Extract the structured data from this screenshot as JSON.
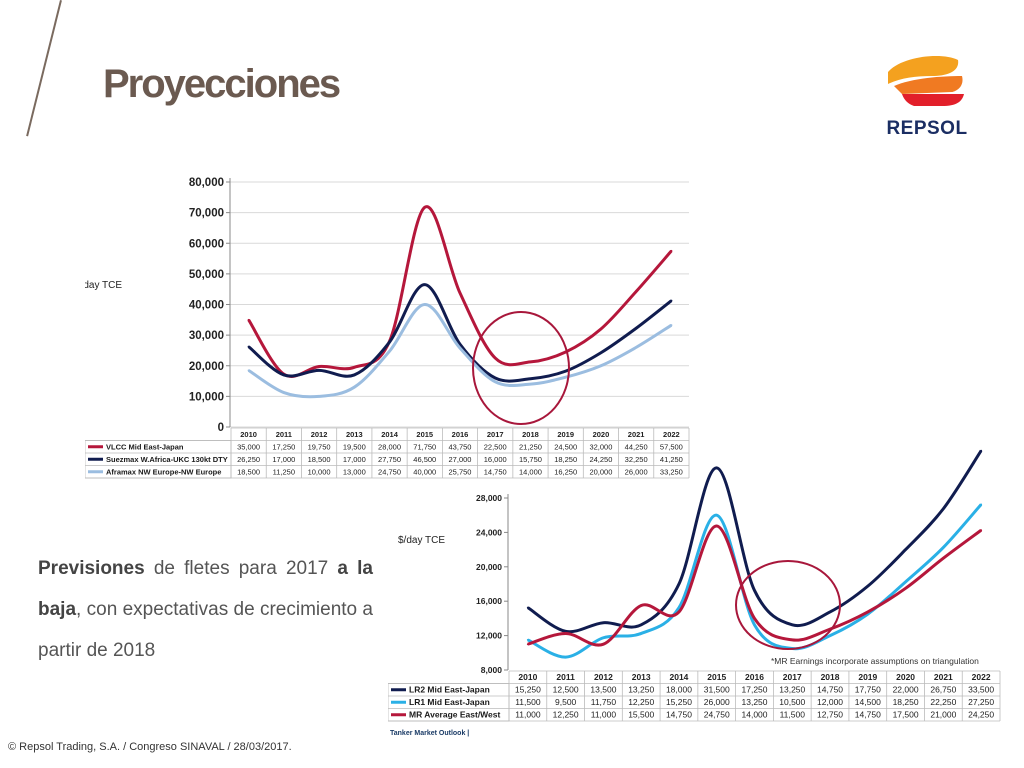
{
  "slide": {
    "title": "Proyecciones",
    "brand": "REPSOL",
    "paragraph": {
      "bold1": "Previsiones",
      "text1": " de fletes para 2017 ",
      "bold2": "a la baja",
      "text2": ", con expectativas de crecimiento a partir de 2018"
    },
    "footer": "© Repsol Trading, S.A. /  Congreso SINAVAL / 28/03/2017.",
    "source_label": "Tanker Market Outlook |"
  },
  "colors": {
    "red": "#b5173b",
    "navy": "#101c4f",
    "lightblue": "#9bbde0",
    "cyan": "#2ab0e6",
    "highlight": "#a8173b"
  },
  "chart_data": [
    {
      "type": "line",
      "ylabel": "$/day TCE",
      "ylim": [
        0,
        80000
      ],
      "yticks": [
        "0",
        "10,000",
        "20,000",
        "30,000",
        "40,000",
        "50,000",
        "60,000",
        "70,000",
        "80,000"
      ],
      "grid": true,
      "categories": [
        "2010",
        "2011",
        "2012",
        "2013",
        "2014",
        "2015",
        "2016",
        "2017",
        "2018",
        "2019",
        "2020",
        "2021",
        "2022"
      ],
      "series": [
        {
          "name": "VLCC Mid East-Japan",
          "color": "#b5173b",
          "values": [
            35000,
            17250,
            19750,
            19500,
            28000,
            71750,
            43750,
            22500,
            21250,
            24500,
            32000,
            44250,
            57500
          ],
          "labels": [
            "35,000",
            "17,250",
            "19,750",
            "19,500",
            "28,000",
            "71,750",
            "43,750",
            "22,500",
            "21,250",
            "24,500",
            "32,000",
            "44,250",
            "57,500"
          ]
        },
        {
          "name": "Suezmax W.Africa-UKC 130kt DTY",
          "color": "#101c4f",
          "values": [
            26250,
            17000,
            18500,
            17000,
            27750,
            46500,
            27000,
            16000,
            15750,
            18250,
            24250,
            32250,
            41250
          ],
          "labels": [
            "26,250",
            "17,000",
            "18,500",
            "17,000",
            "27,750",
            "46,500",
            "27,000",
            "16,000",
            "15,750",
            "18,250",
            "24,250",
            "32,250",
            "41,250"
          ]
        },
        {
          "name": "Aframax NW Europe-NW Europe",
          "color": "#9bbde0",
          "values": [
            18500,
            11250,
            10000,
            13000,
            24750,
            40000,
            25750,
            14750,
            14000,
            16250,
            20000,
            26000,
            33250
          ],
          "labels": [
            "18,500",
            "11,250",
            "10,000",
            "13,000",
            "24,750",
            "40,000",
            "25,750",
            "14,750",
            "14,000",
            "16,250",
            "20,000",
            "26,000",
            "33,250"
          ]
        }
      ],
      "highlight": {
        "around": "2017-2018"
      }
    },
    {
      "type": "line",
      "ylabel": "$/day TCE",
      "ylim": [
        8000,
        28000
      ],
      "yticks": [
        "8,000",
        "12,000",
        "16,000",
        "20,000",
        "24,000",
        "28,000"
      ],
      "grid": false,
      "annotation": "*MR Earnings incorporate assumptions on triangulation",
      "categories": [
        "2010",
        "2011",
        "2012",
        "2013",
        "2014",
        "2015",
        "2016",
        "2017",
        "2018",
        "2019",
        "2020",
        "2021",
        "2022"
      ],
      "series": [
        {
          "name": "LR2 Mid East-Japan",
          "color": "#101c4f",
          "values": [
            15250,
            12500,
            13500,
            13250,
            18000,
            31500,
            17250,
            13250,
            14750,
            17750,
            22000,
            26750,
            33500
          ],
          "labels": [
            "15,250",
            "12,500",
            "13,500",
            "13,250",
            "18,000",
            "31,500",
            "17,250",
            "13,250",
            "14,750",
            "17,750",
            "22,000",
            "26,750",
            "33,500"
          ]
        },
        {
          "name": "LR1 Mid East-Japan",
          "color": "#2ab0e6",
          "values": [
            11500,
            9500,
            11750,
            12250,
            15250,
            26000,
            13250,
            10500,
            12000,
            14500,
            18250,
            22250,
            27250
          ],
          "labels": [
            "11,500",
            "9,500",
            "11,750",
            "12,250",
            "15,250",
            "26,000",
            "13,250",
            "10,500",
            "12,000",
            "14,500",
            "18,250",
            "22,250",
            "27,250"
          ]
        },
        {
          "name": "MR Average East/West",
          "color": "#b5173b",
          "values": [
            11000,
            12250,
            11000,
            15500,
            14750,
            24750,
            14000,
            11500,
            12750,
            14750,
            17500,
            21000,
            24250
          ],
          "labels": [
            "11,000",
            "12,250",
            "11,000",
            "15,500",
            "14,750",
            "24,750",
            "14,000",
            "11,500",
            "12,750",
            "14,750",
            "17,500",
            "21,000",
            "24,250"
          ]
        }
      ],
      "highlight": {
        "around": "2017"
      }
    }
  ]
}
